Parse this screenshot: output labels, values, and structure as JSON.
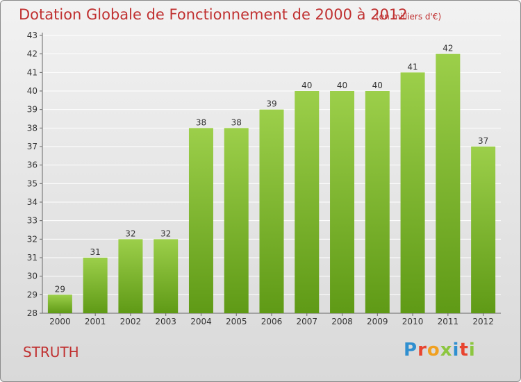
{
  "page": {
    "title": "Dotation Globale de Fonctionnement de 2000 à 2012",
    "unit_note": "(en milliers d'€)",
    "commune": "STRUTH",
    "logo_text": "Proxiti"
  },
  "colors": {
    "title": "#c03030",
    "bar_light": "#9ccf4a",
    "bar_dark": "#5f9a16",
    "grid": "#ffffff",
    "axis_text": "#333333"
  },
  "chart_data": {
    "type": "bar",
    "title": "Dotation Globale de Fonctionnement de 2000 à 2012",
    "xlabel": "",
    "ylabel": "",
    "categories": [
      "2000",
      "2001",
      "2002",
      "2003",
      "2004",
      "2005",
      "2006",
      "2007",
      "2008",
      "2009",
      "2010",
      "2011",
      "2012"
    ],
    "values": [
      29,
      31,
      32,
      32,
      38,
      38,
      39,
      40,
      40,
      40,
      41,
      42,
      37
    ],
    "ylim": [
      28,
      43
    ],
    "yticks": [
      28,
      29,
      30,
      31,
      32,
      33,
      34,
      35,
      36,
      37,
      38,
      39,
      40,
      41,
      42,
      43
    ],
    "grid": true,
    "data_labels": true
  }
}
